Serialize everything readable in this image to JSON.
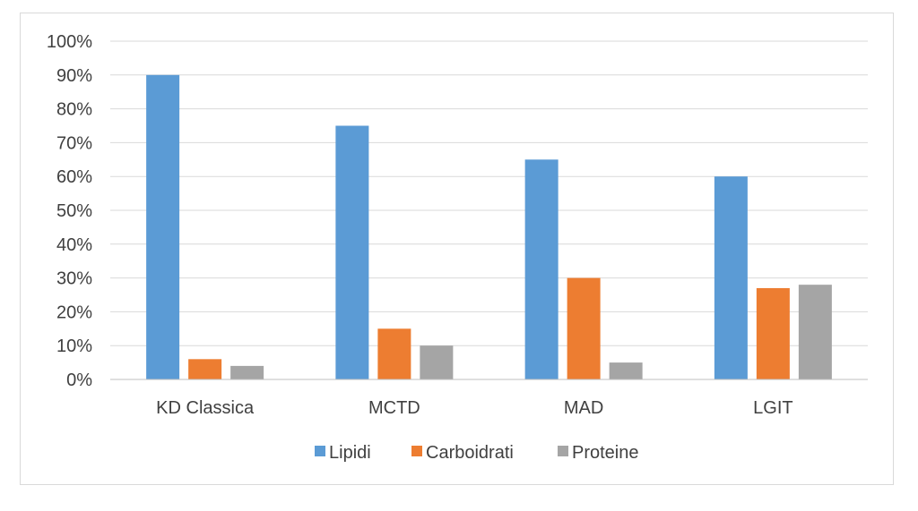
{
  "chart_data": {
    "type": "bar",
    "title": "",
    "xlabel": "",
    "ylabel": "",
    "categories": [
      "KD Classica",
      "MCTD",
      "MAD",
      "LGIT"
    ],
    "series": [
      {
        "name": "Lipidi",
        "values": [
          90,
          75,
          65,
          60
        ],
        "color": "#5b9bd5"
      },
      {
        "name": "Carboidrati",
        "values": [
          6,
          15,
          30,
          27
        ],
        "color": "#ed7d31"
      },
      {
        "name": "Proteine",
        "values": [
          4,
          10,
          5,
          28
        ],
        "color": "#a5a5a5"
      }
    ],
    "ylim": [
      0,
      100
    ],
    "yticks": [
      0,
      10,
      20,
      30,
      40,
      50,
      60,
      70,
      80,
      90,
      100
    ],
    "ytick_labels": [
      "0%",
      "10%",
      "20%",
      "30%",
      "40%",
      "50%",
      "60%",
      "70%",
      "80%",
      "90%",
      "100%"
    ],
    "grid": true,
    "legend_position": "bottom"
  }
}
